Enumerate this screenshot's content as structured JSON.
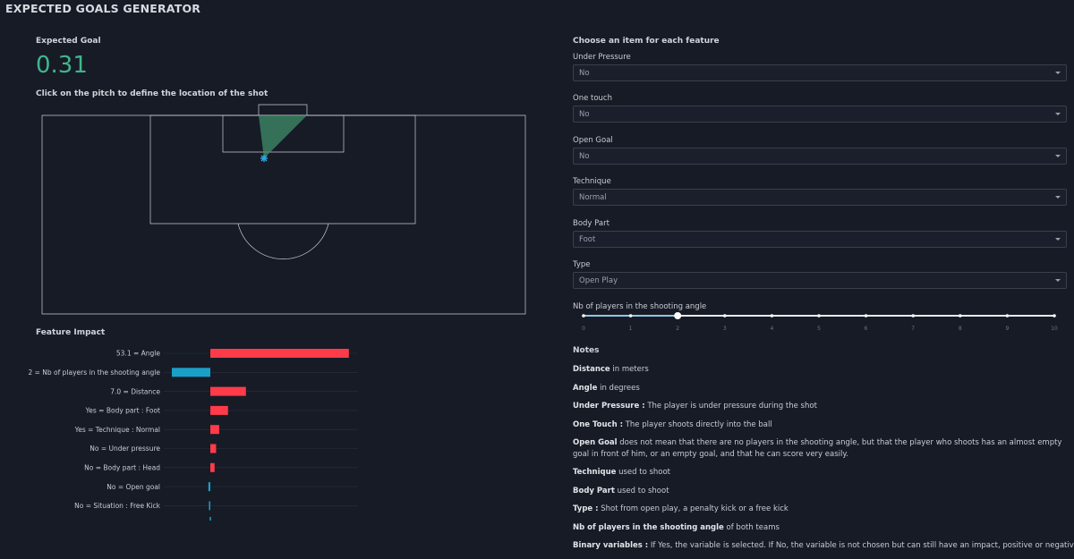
{
  "app": {
    "title": "EXPECTED GOALS GENERATOR"
  },
  "left": {
    "xg_title": "Expected Goal",
    "xg_value": "0.31",
    "pitch_instruction": "Click on the pitch to define the location of the shot",
    "feature_impact_title": "Feature Impact",
    "colors": {
      "positive": "#ff3b4a",
      "negative": "#1aa0c8",
      "shot_cone": "#3f8f6a",
      "shot_marker": "#29a8e0"
    }
  },
  "chart_data": {
    "type": "bar",
    "orientation": "horizontal",
    "categories": [
      "53.1 = Angle",
      "2 = Nb of players in the shooting angle",
      "7.0 = Distance",
      "Yes = Body part : Foot",
      "Yes = Technique : Normal",
      "No = Under pressure",
      "No = Body part : Head",
      "No = Open goal",
      "No = Situation : Free Kick"
    ],
    "values": [
      0.72,
      -0.2,
      0.185,
      0.092,
      0.046,
      0.03,
      0.022,
      -0.01,
      -0.006
    ],
    "title": "",
    "xlabel": "",
    "ylabel": ""
  },
  "right": {
    "title": "Choose an item for each feature",
    "fields": [
      {
        "label": "Under Pressure",
        "value": "No"
      },
      {
        "label": "One touch",
        "value": "No"
      },
      {
        "label": "Open Goal",
        "value": "No"
      },
      {
        "label": "Technique",
        "value": "Normal"
      },
      {
        "label": "Body Part",
        "value": "Foot"
      },
      {
        "label": "Type",
        "value": "Open Play"
      }
    ],
    "slider": {
      "label": "Nb of players in the shooting angle",
      "min": 0,
      "max": 10,
      "value": 2,
      "ticks": [
        "0",
        "1",
        "2",
        "3",
        "4",
        "5",
        "6",
        "7",
        "8",
        "9",
        "10"
      ]
    },
    "notes": {
      "title": "Notes",
      "items": [
        {
          "bold": "Distance",
          "text": " in meters"
        },
        {
          "bold": "Angle",
          "text": " in degrees"
        },
        {
          "bold": "Under Pressure :",
          "text": " The player is under pressure during the shot"
        },
        {
          "bold": "One Touch :",
          "text": " The player shoots directly into the ball"
        },
        {
          "bold": "Open Goal",
          "text": " does not mean that there are no players in the shooting angle, but that the player who shoots has an almost empty goal in front of him, or an empty goal, and that he can score very easily."
        },
        {
          "bold": "Technique",
          "text": " used to shoot"
        },
        {
          "bold": "Body Part",
          "text": " used to shoot"
        },
        {
          "bold": "Type :",
          "text": " Shot from open play, a penalty kick or a free kick"
        },
        {
          "bold": "Nb of players in the shooting angle",
          "text": " of both teams"
        },
        {
          "bold": "Binary variables :",
          "text": " If Yes, the variable is selected. If No, the variable is not chosen but can still have an impact, positive or negative, on the"
        }
      ]
    }
  }
}
